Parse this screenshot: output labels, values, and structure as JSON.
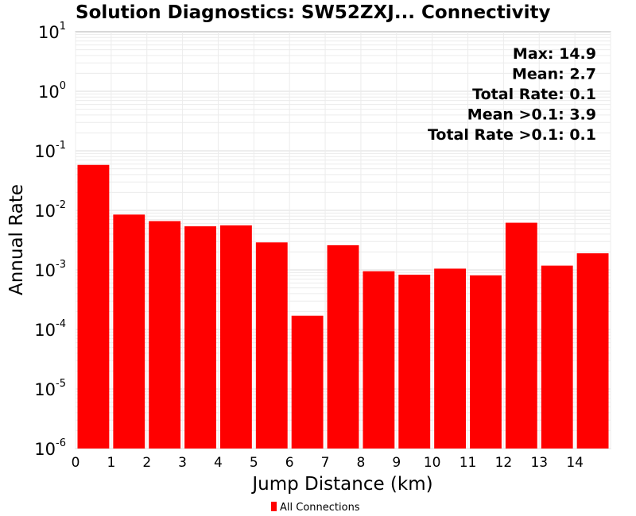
{
  "chart_data": {
    "type": "bar",
    "title": "Solution Diagnostics: SW52ZXJ... Connectivity",
    "xlabel": "Jump Distance (km)",
    "ylabel": "Annual Rate",
    "y_scale": "log",
    "ylim": [
      1e-06,
      10
    ],
    "xlim": [
      0,
      15
    ],
    "x_ticks": [
      0,
      1,
      2,
      3,
      4,
      5,
      6,
      7,
      8,
      9,
      10,
      11,
      12,
      13,
      14
    ],
    "y_ticks": [
      {
        "base": "10",
        "exp": "1"
      },
      {
        "base": "10",
        "exp": "0"
      },
      {
        "base": "10",
        "exp": "-1"
      },
      {
        "base": "10",
        "exp": "-2"
      },
      {
        "base": "10",
        "exp": "-3"
      },
      {
        "base": "10",
        "exp": "-4"
      },
      {
        "base": "10",
        "exp": "-5"
      },
      {
        "base": "10",
        "exp": "-6"
      }
    ],
    "grid": true,
    "bar_color": "#ff0000",
    "bins": [
      {
        "x_start": 0,
        "x_end": 1,
        "value": 0.058
      },
      {
        "x_start": 1,
        "x_end": 2,
        "value": 0.0085
      },
      {
        "x_start": 2,
        "x_end": 3,
        "value": 0.0066
      },
      {
        "x_start": 3,
        "x_end": 4,
        "value": 0.0054
      },
      {
        "x_start": 4,
        "x_end": 5,
        "value": 0.0056
      },
      {
        "x_start": 5,
        "x_end": 6,
        "value": 0.0029
      },
      {
        "x_start": 6,
        "x_end": 7,
        "value": 0.00017
      },
      {
        "x_start": 7,
        "x_end": 8,
        "value": 0.0026
      },
      {
        "x_start": 8,
        "x_end": 9,
        "value": 0.00095
      },
      {
        "x_start": 9,
        "x_end": 10,
        "value": 0.00083
      },
      {
        "x_start": 10,
        "x_end": 11,
        "value": 0.00105
      },
      {
        "x_start": 11,
        "x_end": 12,
        "value": 0.00081
      },
      {
        "x_start": 12,
        "x_end": 13,
        "value": 0.0062
      },
      {
        "x_start": 13,
        "x_end": 14,
        "value": 0.00118
      },
      {
        "x_start": 14,
        "x_end": 15,
        "value": 0.0019
      }
    ],
    "annotations": [
      "Max: 14.9",
      "Mean: 2.7",
      "Total Rate: 0.1",
      "Mean >0.1: 3.9",
      "Total Rate >0.1: 0.1"
    ],
    "annotation_position": "top-right",
    "legend": {
      "position": "bottom-center",
      "entries": [
        {
          "label": "All Connections",
          "color": "#ff0000"
        }
      ]
    }
  }
}
